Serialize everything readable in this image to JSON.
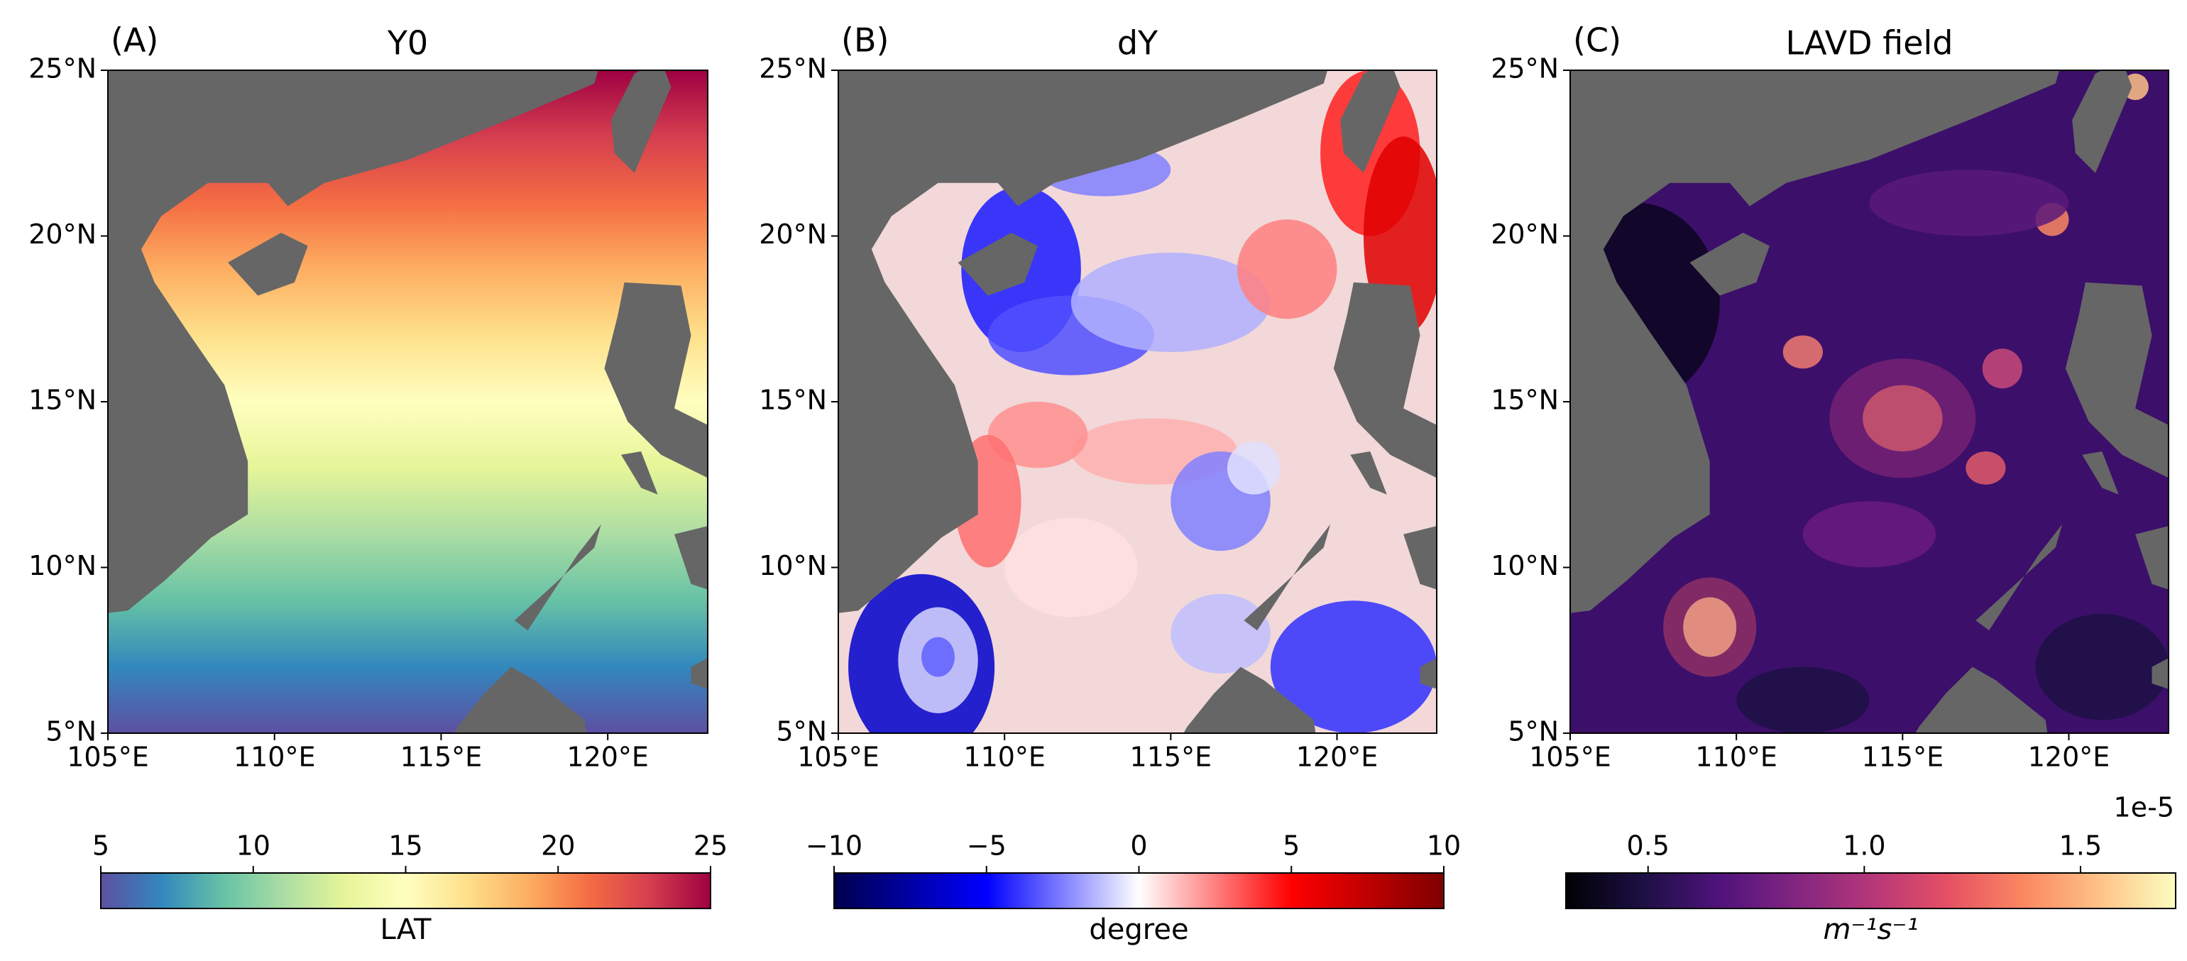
{
  "figure": {
    "panels": [
      {
        "label": "(A)",
        "title": "Y0",
        "field": "latitude",
        "xlim": [
          105,
          123
        ],
        "ylim": [
          5,
          25
        ],
        "xticks": [
          {
            "value": 105,
            "label": "105°E"
          },
          {
            "value": 110,
            "label": "110°E"
          },
          {
            "value": 115,
            "label": "115°E"
          },
          {
            "value": 120,
            "label": "120°E"
          }
        ],
        "yticks": [
          {
            "value": 5,
            "label": "5°N"
          },
          {
            "value": 10,
            "label": "10°N"
          },
          {
            "value": 15,
            "label": "15°N"
          },
          {
            "value": 20,
            "label": "20°N"
          },
          {
            "value": 25,
            "label": "25°N"
          }
        ],
        "colorbar": {
          "label": "LAT",
          "clim": [
            5,
            25
          ],
          "ticks": [
            5,
            10,
            15,
            20,
            25
          ],
          "colormap": [
            "#5e4fa2",
            "#3288bd",
            "#66c2a5",
            "#abdda4",
            "#e6f598",
            "#ffffbf",
            "#fee08b",
            "#fdae61",
            "#f46d43",
            "#d53e4f",
            "#9e0142"
          ]
        }
      },
      {
        "label": "(B)",
        "title": "dY",
        "field": "eddies-diverging",
        "xlim": [
          105,
          123
        ],
        "ylim": [
          5,
          25
        ],
        "xticks": [
          {
            "value": 105,
            "label": "105°E"
          },
          {
            "value": 110,
            "label": "110°E"
          },
          {
            "value": 115,
            "label": "115°E"
          },
          {
            "value": 120,
            "label": "120°E"
          }
        ],
        "yticks": [
          {
            "value": 5,
            "label": "5°N"
          },
          {
            "value": 10,
            "label": "10°N"
          },
          {
            "value": 15,
            "label": "15°N"
          },
          {
            "value": 20,
            "label": "20°N"
          },
          {
            "value": 25,
            "label": "25°N"
          }
        ],
        "colorbar": {
          "label": "degree",
          "clim": [
            -10,
            10
          ],
          "ticks": [
            {
              "value": -10,
              "label": "−10"
            },
            {
              "value": -5,
              "label": "−5"
            },
            0,
            5,
            10
          ],
          "colormap": [
            "#00004c",
            "#0000ff",
            "#ffffff",
            "#ff0000",
            "#7f0000"
          ]
        }
      },
      {
        "label": "(C)",
        "title": "LAVD field",
        "field": "eddies-sequential",
        "xlim": [
          105,
          123
        ],
        "ylim": [
          5,
          25
        ],
        "xticks": [
          {
            "value": 105,
            "label": "105°E"
          },
          {
            "value": 110,
            "label": "110°E"
          },
          {
            "value": 115,
            "label": "115°E"
          },
          {
            "value": 120,
            "label": "120°E"
          }
        ],
        "yticks": [
          {
            "value": 5,
            "label": "5°N"
          },
          {
            "value": 10,
            "label": "10°N"
          },
          {
            "value": 15,
            "label": "15°N"
          },
          {
            "value": 20,
            "label": "20°N"
          },
          {
            "value": 25,
            "label": "25°N"
          }
        ],
        "colorbar": {
          "label": "m⁻¹s⁻¹",
          "offset_label": "1e-5",
          "clim": [
            0.31,
            1.72
          ],
          "ticks": [
            0.5,
            {
              "value": 1.0,
              "label": "1.0"
            },
            1.5
          ],
          "colormap": [
            "#000004",
            "#1c1044",
            "#4f127b",
            "#812581",
            "#b5367a",
            "#e55064",
            "#fb8761",
            "#fec287",
            "#fcfdbf"
          ]
        }
      }
    ]
  }
}
